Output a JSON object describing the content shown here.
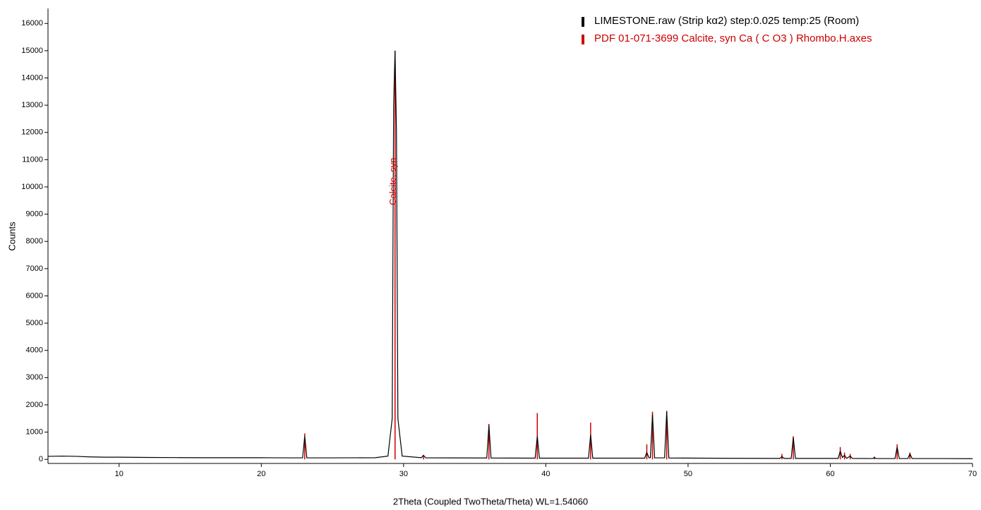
{
  "chart_data": {
    "type": "line",
    "x_label": "2Theta (Coupled TwoTheta/Theta) WL=1.54060",
    "y_label": "Counts",
    "annotation": "Calcite, syn",
    "xlim": [
      5,
      70
    ],
    "ylim": [
      -150,
      16550
    ],
    "xticks": [
      10,
      20,
      30,
      40,
      50,
      60,
      70
    ],
    "yticks": [
      0,
      1000,
      2000,
      3000,
      4000,
      5000,
      6000,
      7000,
      8000,
      9000,
      10000,
      11000,
      12000,
      13000,
      14000,
      15000,
      16000
    ],
    "series": [
      {
        "name": "LIMESTONE.raw (Strip kα2) step:0.025 temp:25 (Room)",
        "color": "#000000",
        "style": "line",
        "x": [
          5,
          6,
          7,
          8,
          9,
          10,
          12,
          14,
          16,
          18,
          20,
          22,
          22.9,
          23.05,
          23.2,
          25,
          28,
          28.9,
          29.2,
          29.3,
          29.4,
          29.5,
          29.6,
          29.9,
          31.25,
          31.4,
          31.55,
          35.85,
          36.0,
          36.15,
          39.25,
          39.4,
          39.55,
          43.0,
          43.15,
          43.3,
          46.95,
          47.1,
          47.25,
          47.35,
          47.5,
          47.65,
          48.35,
          48.5,
          48.65,
          52,
          56.45,
          56.6,
          56.75,
          57.25,
          57.4,
          57.55,
          60.55,
          60.7,
          60.85,
          61.0,
          61.15,
          61.4,
          61.55,
          62.95,
          63.1,
          63.25,
          64.55,
          64.7,
          64.85,
          65.45,
          65.6,
          65.75,
          68,
          70
        ],
        "values": [
          110,
          120,
          110,
          90,
          80,
          80,
          70,
          65,
          60,
          60,
          60,
          55,
          55,
          850,
          55,
          55,
          60,
          120,
          1500,
          13000,
          15000,
          12000,
          1500,
          120,
          60,
          150,
          55,
          50,
          1250,
          50,
          45,
          850,
          45,
          45,
          900,
          45,
          45,
          250,
          60,
          60,
          1650,
          55,
          55,
          1750,
          50,
          40,
          35,
          100,
          35,
          35,
          800,
          35,
          35,
          300,
          70,
          150,
          35,
          120,
          35,
          30,
          60,
          30,
          30,
          450,
          30,
          30,
          200,
          30,
          30,
          25
        ]
      },
      {
        "name": "PDF 01-071-3699 Calcite, syn Ca ( C O3 ) Rhombo.H.axes",
        "color": "#cc0000",
        "style": "stick",
        "x": [
          23.05,
          29.4,
          31.4,
          36.0,
          39.4,
          43.15,
          47.1,
          47.5,
          48.5,
          56.6,
          57.4,
          60.7,
          61.0,
          61.4,
          63.1,
          64.7,
          65.6
        ],
        "values": [
          950,
          15000,
          150,
          1300,
          1700,
          1350,
          550,
          1750,
          1780,
          200,
          850,
          450,
          250,
          200,
          100,
          550,
          250
        ]
      }
    ]
  }
}
